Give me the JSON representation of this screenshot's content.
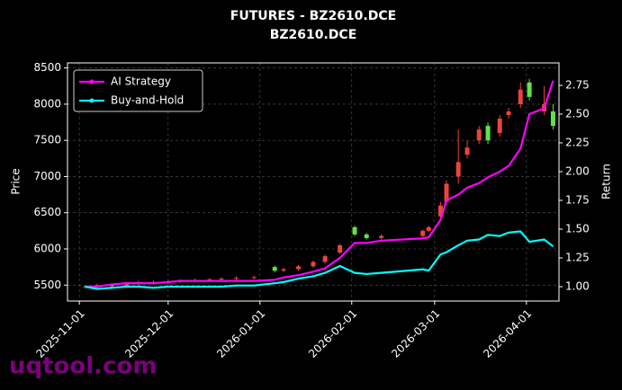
{
  "chart_data": {
    "type": "candlestick",
    "title": "FUTURES - BZ2610.DCE",
    "subtitle": "BZ2610.DCE",
    "y_label": "Price",
    "y2_label": "Return",
    "watermark": "uqtool.com",
    "x": [
      "2025-11-03",
      "2025-11-07",
      "2025-11-12",
      "2025-11-17",
      "2025-11-21",
      "2025-11-26",
      "2025-12-01",
      "2025-12-05",
      "2025-12-10",
      "2025-12-15",
      "2025-12-19",
      "2025-12-24",
      "2025-12-30",
      "2026-01-06",
      "2026-01-09",
      "2026-01-14",
      "2026-01-19",
      "2026-01-23",
      "2026-01-28",
      "2026-02-02",
      "2026-02-06",
      "2026-02-11",
      "2026-02-25",
      "2026-02-27",
      "2026-03-03",
      "2026-03-05",
      "2026-03-09",
      "2026-03-12",
      "2026-03-16",
      "2026-03-19",
      "2026-03-23",
      "2026-03-26",
      "2026-03-30",
      "2026-04-02",
      "2026-04-07",
      "2026-04-10"
    ],
    "open": [
      5470,
      5480,
      5500,
      5490,
      5520,
      5540,
      5530,
      5550,
      5560,
      5570,
      5580,
      5590,
      5600,
      5750,
      5700,
      5720,
      5760,
      5820,
      5950,
      6300,
      6200,
      6150,
      6180,
      6250,
      6450,
      6650,
      7000,
      7300,
      7500,
      7700,
      7600,
      7850,
      8000,
      8300,
      7900,
      7900
    ],
    "high": [
      5500,
      5520,
      5520,
      5540,
      5560,
      5560,
      5570,
      5580,
      5590,
      5600,
      5610,
      5620,
      5630,
      5770,
      5740,
      5780,
      5840,
      5920,
      6070,
      6320,
      6220,
      6200,
      6270,
      6320,
      6650,
      6950,
      7650,
      7500,
      7700,
      7750,
      7850,
      7950,
      8300,
      8350,
      8250,
      8000
    ],
    "low": [
      5450,
      5460,
      5470,
      5470,
      5500,
      5510,
      5510,
      5530,
      5540,
      5550,
      5560,
      5570,
      5580,
      5680,
      5680,
      5700,
      5740,
      5800,
      5930,
      6180,
      6130,
      6130,
      6160,
      6230,
      6420,
      6600,
      6900,
      7250,
      7450,
      7450,
      7550,
      7800,
      7950,
      8050,
      7850,
      7650
    ],
    "close": [
      5480,
      5500,
      5490,
      5520,
      5540,
      5530,
      5550,
      5560,
      5570,
      5580,
      5590,
      5600,
      5610,
      5700,
      5720,
      5760,
      5820,
      5900,
      6050,
      6200,
      6150,
      6180,
      6250,
      6300,
      6600,
      6900,
      7200,
      7400,
      7650,
      7500,
      7800,
      7900,
      8200,
      8100,
      8000,
      7700
    ],
    "up_color": "#e8453c",
    "down_color": "#5fe34a",
    "series": [
      {
        "name": "AI Strategy",
        "color": "#ff00ff",
        "axis": "y2",
        "values": [
          1.0,
          1.0,
          1.02,
          1.03,
          1.03,
          1.03,
          1.04,
          1.05,
          1.05,
          1.05,
          1.05,
          1.05,
          1.05,
          1.06,
          1.08,
          1.1,
          1.13,
          1.16,
          1.25,
          1.38,
          1.38,
          1.4,
          1.42,
          1.43,
          1.58,
          1.75,
          1.8,
          1.86,
          1.9,
          1.95,
          2.0,
          2.05,
          2.2,
          2.5,
          2.55,
          2.79
        ]
      },
      {
        "name": "Buy-and-Hold",
        "color": "#00ffff",
        "axis": "y2",
        "values": [
          1.0,
          0.98,
          0.99,
          1.0,
          1.0,
          0.99,
          1.0,
          1.0,
          1.0,
          1.0,
          1.0,
          1.01,
          1.01,
          1.03,
          1.04,
          1.07,
          1.09,
          1.12,
          1.18,
          1.12,
          1.11,
          1.12,
          1.15,
          1.14,
          1.28,
          1.3,
          1.36,
          1.4,
          1.41,
          1.45,
          1.44,
          1.47,
          1.48,
          1.39,
          1.41,
          1.35
        ]
      }
    ],
    "xlim": [
      "2025-10-28",
      "2026-04-12"
    ],
    "xticks": [
      "2025-11-01",
      "2025-12-01",
      "2026-01-01",
      "2026-02-01",
      "2026-03-01",
      "2026-04-01"
    ],
    "ylim": [
      5280,
      8570
    ],
    "yticks": [
      5500,
      6000,
      6500,
      7000,
      7500,
      8000,
      8500
    ],
    "y2lim": [
      0.875,
      2.945
    ],
    "y2ticks": [
      {
        "value": 1,
        "label": "1.00"
      },
      {
        "value": 1.25,
        "label": "1.25"
      },
      {
        "value": 1.5,
        "label": "1.50"
      },
      {
        "value": 1.75,
        "label": "1.75"
      },
      {
        "value": 2,
        "label": "2.00"
      },
      {
        "value": 2.25,
        "label": "2.25"
      },
      {
        "value": 2.5,
        "label": "2.50"
      },
      {
        "value": 2.75,
        "label": "2.75"
      }
    ],
    "grid": true,
    "legend": "upper left"
  }
}
